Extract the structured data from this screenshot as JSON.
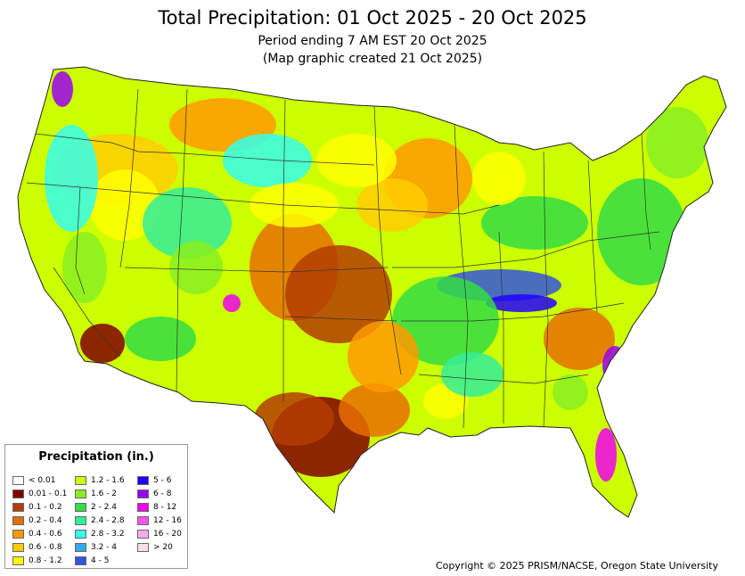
{
  "header": {
    "title": "Total Precipitation: 01 Oct 2025 - 20 Oct 2025",
    "period": "Period ending 7 AM EST 20 Oct 2025",
    "created": "(Map graphic created 21 Oct 2025)"
  },
  "legend": {
    "title": "Precipitation (in.)",
    "classes": [
      {
        "label": "< 0.01",
        "color": "#ffffff"
      },
      {
        "label": "0.01 - 0.1",
        "color": "#800000"
      },
      {
        "label": "0.1 - 0.2",
        "color": "#b33c00"
      },
      {
        "label": "0.2 - 0.4",
        "color": "#e66e00"
      },
      {
        "label": "0.4 - 0.6",
        "color": "#ff9900"
      },
      {
        "label": "0.6 - 0.8",
        "color": "#ffcc00"
      },
      {
        "label": "0.8 - 1.2",
        "color": "#ffff00"
      },
      {
        "label": "1.2 - 1.6",
        "color": "#ccff00"
      },
      {
        "label": "1.6 - 2",
        "color": "#88ee22"
      },
      {
        "label": "2 - 2.4",
        "color": "#33dd44"
      },
      {
        "label": "2.4 - 2.8",
        "color": "#33ee99"
      },
      {
        "label": "2.8 - 3.2",
        "color": "#33ffee"
      },
      {
        "label": "3.2 - 4",
        "color": "#33aaee"
      },
      {
        "label": "4 - 5",
        "color": "#3355dd"
      },
      {
        "label": "5 - 6",
        "color": "#2200ff"
      },
      {
        "label": "6 - 8",
        "color": "#9900ee"
      },
      {
        "label": "8 - 12",
        "color": "#ee00ee"
      },
      {
        "label": "12 - 16",
        "color": "#ff55ee"
      },
      {
        "label": "16 - 20",
        "color": "#ffaaee"
      },
      {
        "label": "> 20",
        "color": "#ffddee"
      }
    ]
  },
  "footer": {
    "copyright": "Copyright © 2025 PRISM/NACSE, Oregon State University"
  }
}
